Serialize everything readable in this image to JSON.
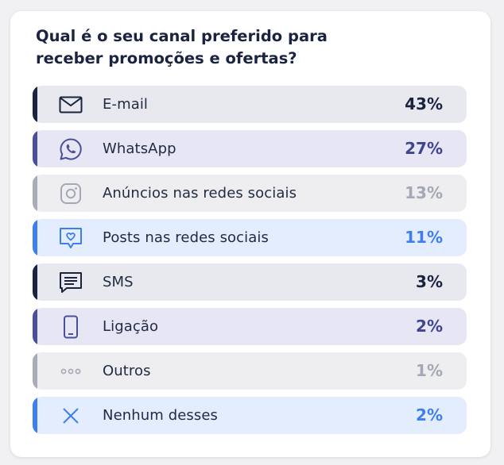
{
  "title": "Qual é o seu canal preferido para receber promoções e ofertas?",
  "chart_data": {
    "type": "bar",
    "title": "Qual é o seu canal preferido para receber promoções e ofertas?",
    "categories": [
      "E-mail",
      "WhatsApp",
      "Anúncios nas redes sociais",
      "Posts nas redes sociais",
      "SMS",
      "Ligação",
      "Outros",
      "Nenhum desses"
    ],
    "values": [
      43,
      27,
      13,
      11,
      3,
      2,
      1,
      2
    ],
    "value_labels": [
      "43%",
      "27%",
      "13%",
      "11%",
      "3%",
      "2%",
      "1%",
      "2%"
    ],
    "unit": "%"
  },
  "rows": [
    {
      "label": "E-mail",
      "value": "43%",
      "icon": "mail-icon",
      "accent": "#1a2340",
      "bg": "#e8e9ee",
      "value_color": "#1a2340"
    },
    {
      "label": "WhatsApp",
      "value": "27%",
      "icon": "whatsapp-icon",
      "accent": "#4a4f9a",
      "bg": "#e6e6f4",
      "value_color": "#3f4590"
    },
    {
      "label": "Anúncios nas redes sociais",
      "value": "13%",
      "icon": "instagram-icon",
      "accent": "#a8acb8",
      "bg": "#eeeef1",
      "value_color": "#a4a8b6"
    },
    {
      "label": "Posts nas redes sociais",
      "value": "11%",
      "icon": "chat-heart-icon",
      "accent": "#3d7ef0",
      "bg": "#e4edfd",
      "value_color": "#3d7ef0"
    },
    {
      "label": "SMS",
      "value": "3%",
      "icon": "message-icon",
      "accent": "#1a2340",
      "bg": "#e8e9ee",
      "value_color": "#1a2340"
    },
    {
      "label": "Ligação",
      "value": "2%",
      "icon": "phone-icon",
      "accent": "#4a4f9a",
      "bg": "#e6e6f4",
      "value_color": "#3f4590"
    },
    {
      "label": "Outros",
      "value": "1%",
      "icon": "more-dots-icon",
      "accent": "#a8acb8",
      "bg": "#eeeef1",
      "value_color": "#a4a8b6"
    },
    {
      "label": "Nenhum desses",
      "value": "2%",
      "icon": "x-icon",
      "accent": "#3d7ef0",
      "bg": "#e4edfd",
      "value_color": "#3d7ef0"
    }
  ]
}
